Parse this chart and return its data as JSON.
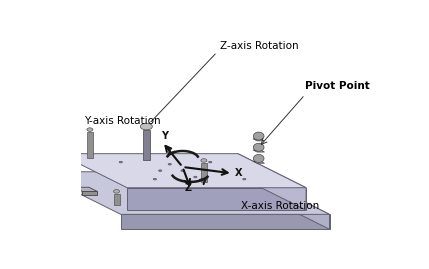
{
  "title": "",
  "background_color": "#ffffff",
  "labels": {
    "z_axis_rotation": "Z-axis Rotation",
    "y_axis_rotation": "Y-axis Rotation",
    "x_axis_rotation": "X-axis Rotation",
    "pivot_point": "Pivot Point",
    "x": "X",
    "y": "Y",
    "z": "Z"
  },
  "colors": {
    "plate_top": "#d8d8e8",
    "edge": "#606070",
    "arrow_color": "#1a1a1a",
    "text_color": "#000000",
    "axis_color": "#111111"
  },
  "figsize": [
    4.29,
    2.69
  ],
  "dpi": 100
}
